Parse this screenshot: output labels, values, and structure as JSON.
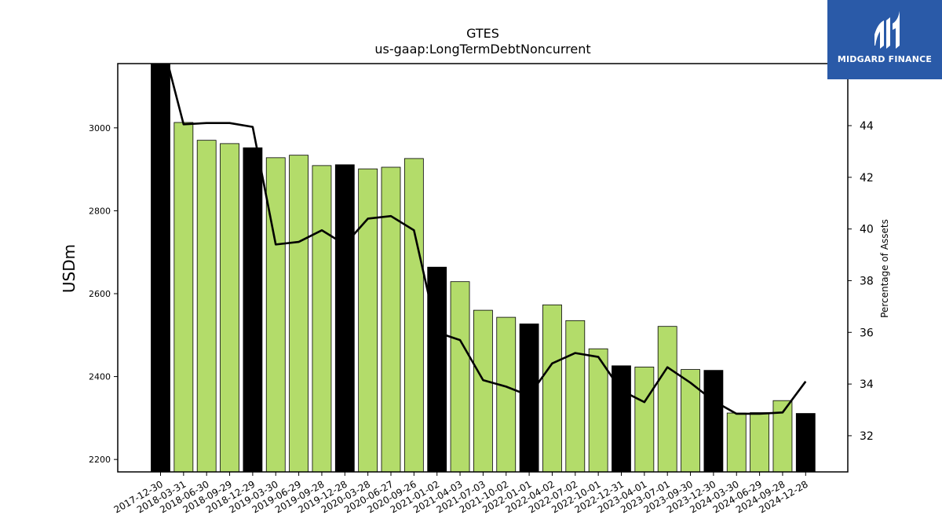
{
  "logo": {
    "text": "MIDGARD FINANCE",
    "icon": "midgard-logo-icon",
    "background": "#2a5aa8"
  },
  "chart_data": {
    "type": "bar",
    "title": "GTES",
    "subtitle": "us-gaap:LongTermDebtNoncurrent",
    "ylabel": "USDm",
    "y2label": "Percentage of Assets",
    "ylim": [
      2170,
      3155
    ],
    "y2lim": [
      30.6,
      46.4
    ],
    "yticks": [
      2200,
      2400,
      2600,
      2800,
      3000
    ],
    "y2ticks": [
      32,
      34,
      36,
      38,
      40,
      42,
      44
    ],
    "bar_color": "#b3dc6a",
    "highlight_color": "#000000",
    "line_color": "#000000",
    "categories": [
      "2017-12-30",
      "2018-03-31",
      "2018-06-30",
      "2018-09-29",
      "2018-12-29",
      "2019-03-30",
      "2019-06-29",
      "2019-09-28",
      "2019-12-28",
      "2020-03-28",
      "2020-06-27",
      "2020-09-26",
      "2021-01-02",
      "2021-04-03",
      "2021-07-03",
      "2021-10-02",
      "2022-01-01",
      "2022-04-02",
      "2022-07-02",
      "2022-10-01",
      "2022-12-31",
      "2023-04-01",
      "2023-07-01",
      "2023-09-30",
      "2023-12-30",
      "2024-03-30",
      "2024-06-29",
      "2024-09-28",
      "2024-12-28"
    ],
    "series": [
      {
        "type": "bar",
        "values": [
          3160,
          3013,
          2970,
          2962,
          2952,
          2928,
          2934,
          2909,
          2911,
          2901,
          2905,
          2926,
          2664,
          2629,
          2560,
          2543,
          2527,
          2573,
          2535,
          2467,
          2426,
          2423,
          2521,
          2417,
          2415,
          2312,
          2313,
          2342,
          2311
        ],
        "highlight": [
          true,
          false,
          false,
          false,
          true,
          false,
          false,
          false,
          true,
          false,
          false,
          false,
          true,
          false,
          false,
          false,
          true,
          false,
          false,
          false,
          true,
          false,
          false,
          false,
          true,
          false,
          false,
          false,
          true
        ]
      },
      {
        "type": "line",
        "axis": "right",
        "values": [
          47.5,
          44.05,
          44.1,
          44.1,
          43.95,
          39.4,
          39.5,
          39.95,
          39.4,
          40.4,
          40.5,
          39.95,
          36.0,
          35.7,
          34.15,
          33.9,
          33.55,
          34.8,
          35.2,
          35.05,
          33.75,
          33.3,
          34.65,
          34.05,
          33.35,
          32.85,
          32.85,
          32.9,
          34.1
        ]
      }
    ]
  }
}
